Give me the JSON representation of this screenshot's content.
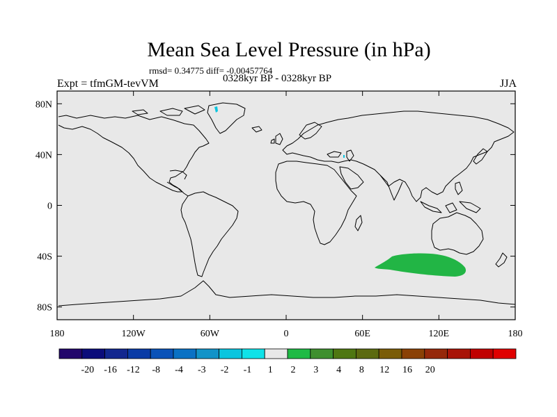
{
  "header": {
    "title": "Mean Sea Level Pressure (in hPa)",
    "stats": "rmsd= 0.34775  diff= -0.00457764",
    "period": "0328kyr BP - 0328kyr BP",
    "experiment": "Expt = tfmGM-tevVM",
    "season": "JJA"
  },
  "map": {
    "projection": "cylindrical-equidistant",
    "lon_range": [
      -180,
      180
    ],
    "lat_range": [
      -90,
      90
    ],
    "lat_ticks": [
      80,
      40,
      0,
      -40,
      -80
    ],
    "lat_tick_labels": [
      "80N",
      "40N",
      "0",
      "40S",
      "80S"
    ],
    "lon_ticks": [
      -180,
      -120,
      -60,
      0,
      60,
      120,
      180
    ],
    "lon_tick_labels": [
      "180",
      "120W",
      "60W",
      "0",
      "60E",
      "120E",
      "180"
    ],
    "background_color": "#e8e8e8"
  },
  "colorbar": {
    "colors": [
      "#22066b",
      "#0b0c7a",
      "#12278f",
      "#0a3ba6",
      "#0a52b8",
      "#0a71c4",
      "#1293c8",
      "#0ac5df",
      "#0fe2e8",
      "#e8e8e8",
      "#1fba45",
      "#3e8f2e",
      "#4f7712",
      "#5c6a10",
      "#7a5c08",
      "#8a4106",
      "#95280a",
      "#a81408",
      "#c00000",
      "#e00000"
    ],
    "labels": [
      "-20",
      "-16",
      "-12",
      "-8",
      "-4",
      "-3",
      "-2",
      "-1",
      "1",
      "2",
      "3",
      "4",
      "8",
      "12",
      "16",
      "20"
    ]
  }
}
